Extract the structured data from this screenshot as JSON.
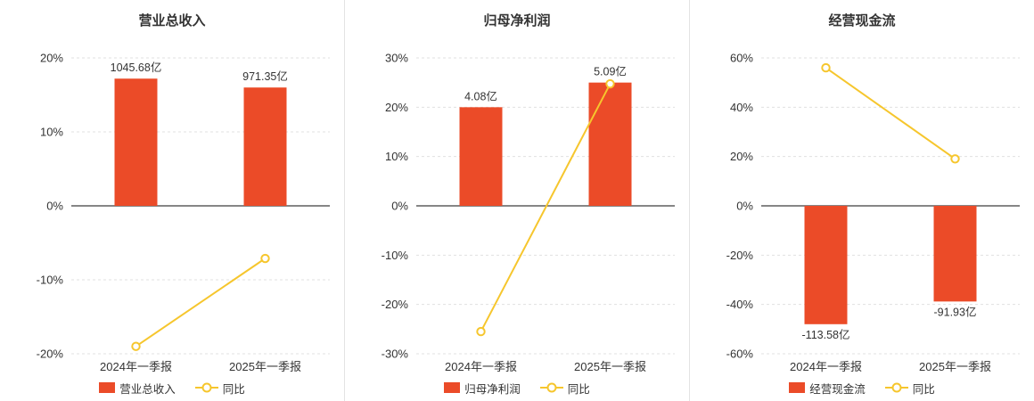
{
  "style": {
    "bar_color": "#eb4b28",
    "line_color": "#f6c62d",
    "marker_fill": "#ffffff",
    "zero_axis_color": "#5f5f5f",
    "grid_color": "#e0e0e0",
    "text_color": "#333333",
    "title_color": "#333333",
    "divider_color": "#e3e3e3",
    "background": "#ffffff"
  },
  "chart_data": [
    {
      "type": "bar+line",
      "title": "营业总收入",
      "categories": [
        "2024年一季报",
        "2025年一季报"
      ],
      "series": [
        {
          "name": "营业总收入",
          "type": "bar",
          "unit": "亿",
          "values": [
            1045.68,
            971.35
          ],
          "labels": [
            "1045.68亿",
            "971.35亿"
          ],
          "display_pct": [
            17.2,
            16.0
          ]
        },
        {
          "name": "同比",
          "type": "line",
          "unit": "%",
          "values": [
            -19,
            -7.11
          ]
        }
      ],
      "ylim": [
        -20,
        20
      ],
      "yticks": [
        -20,
        -10,
        0,
        10,
        20
      ],
      "ytick_suffix": "%",
      "grid": true,
      "legend_position": "bottom"
    },
    {
      "type": "bar+line",
      "title": "归母净利润",
      "categories": [
        "2024年一季报",
        "2025年一季报"
      ],
      "series": [
        {
          "name": "归母净利润",
          "type": "bar",
          "unit": "亿",
          "values": [
            4.08,
            5.09
          ],
          "labels": [
            "4.08亿",
            "5.09亿"
          ],
          "display_pct": [
            20.0,
            25.0
          ]
        },
        {
          "name": "同比",
          "type": "line",
          "unit": "%",
          "values": [
            -25.5,
            24.75
          ]
        }
      ],
      "ylim": [
        -30,
        30
      ],
      "yticks": [
        -30,
        -20,
        -10,
        0,
        10,
        20,
        30
      ],
      "ytick_suffix": "%",
      "grid": true,
      "legend_position": "bottom"
    },
    {
      "type": "bar+line",
      "title": "经营现金流",
      "categories": [
        "2024年一季报",
        "2025年一季报"
      ],
      "series": [
        {
          "name": "经营现金流",
          "type": "bar",
          "unit": "亿",
          "values": [
            -113.58,
            -91.93
          ],
          "labels": [
            "-113.58亿",
            "-91.93亿"
          ],
          "display_pct": [
            -48.0,
            -38.8
          ]
        },
        {
          "name": "同比",
          "type": "line",
          "unit": "%",
          "values": [
            56,
            19.06
          ]
        }
      ],
      "ylim": [
        -60,
        60
      ],
      "yticks": [
        -60,
        -40,
        -20,
        0,
        20,
        40,
        60
      ],
      "ytick_suffix": "%",
      "grid": true,
      "legend_position": "bottom"
    }
  ]
}
